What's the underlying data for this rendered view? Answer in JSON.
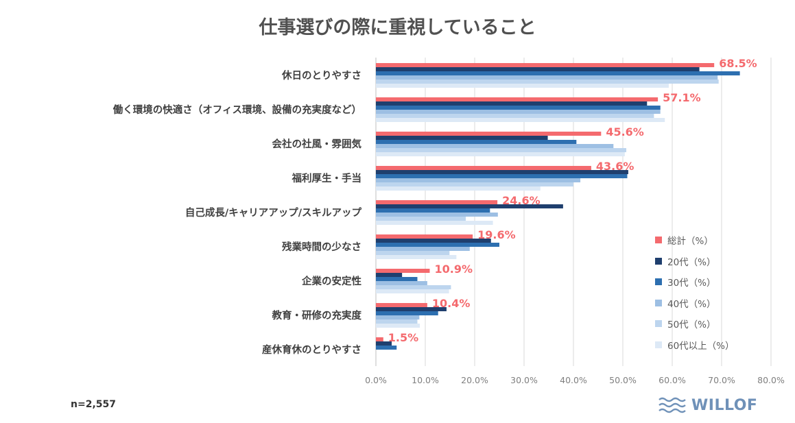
{
  "title": "仕事選びの際に重視していること",
  "note": "n=2,557",
  "brand": {
    "name": "WILLOF",
    "logo_icon": "wave-logo-icon"
  },
  "chart_data": {
    "type": "bar",
    "orientation": "horizontal",
    "title": "仕事選びの際に重視していること",
    "xlim": [
      0,
      80
    ],
    "x_ticks": [
      "0.0%",
      "10.0%",
      "20.0%",
      "30.0%",
      "40.0%",
      "50.0%",
      "60.0%",
      "70.0%",
      "80.0%"
    ],
    "grid": true,
    "legend_position": "right",
    "categories": [
      "休日のとりやすさ",
      "働く環境の快適さ（オフィス環境、設備の充実度など）",
      "会社の社風・雰囲気",
      "福利厚生・手当",
      "自己成長/キャリアアップ/スキルアップ",
      "残業時間の少なさ",
      "企業の安定性",
      "教育・研修の充実度",
      "産休育休のとりやすさ"
    ],
    "series": [
      {
        "name": "総計（%）",
        "color": "#f46a6e",
        "values": [
          68.5,
          57.1,
          45.6,
          43.6,
          24.6,
          19.6,
          10.9,
          10.4,
          1.5
        ]
      },
      {
        "name": "20代（%）",
        "color": "#1f3f6e",
        "values": [
          65.5,
          54.9,
          34.8,
          51.1,
          37.9,
          23.3,
          5.3,
          14.3,
          3.2
        ]
      },
      {
        "name": "30代（%）",
        "color": "#2d6fb0",
        "values": [
          73.7,
          57.6,
          40.6,
          50.9,
          23.1,
          25.0,
          8.4,
          12.6,
          4.2
        ]
      },
      {
        "name": "40代（%）",
        "color": "#9dbfe3",
        "values": [
          69.2,
          57.6,
          48.1,
          41.4,
          24.7,
          19.0,
          10.4,
          8.8,
          0.0
        ]
      },
      {
        "name": "50代（%）",
        "color": "#bdd5ee",
        "values": [
          69.4,
          56.3,
          50.7,
          40.0,
          18.2,
          14.9,
          15.2,
          8.4,
          0.0
        ]
      },
      {
        "name": "60代以上（%）",
        "color": "#dde9f6",
        "values": [
          59.3,
          58.5,
          50.4,
          33.3,
          23.7,
          16.3,
          14.8,
          8.9,
          0.0
        ]
      }
    ],
    "data_labels": [
      "68.5%",
      "57.1%",
      "45.6%",
      "43.6%",
      "24.6%",
      "19.6%",
      "10.9%",
      "10.4%",
      "1.5%"
    ]
  }
}
